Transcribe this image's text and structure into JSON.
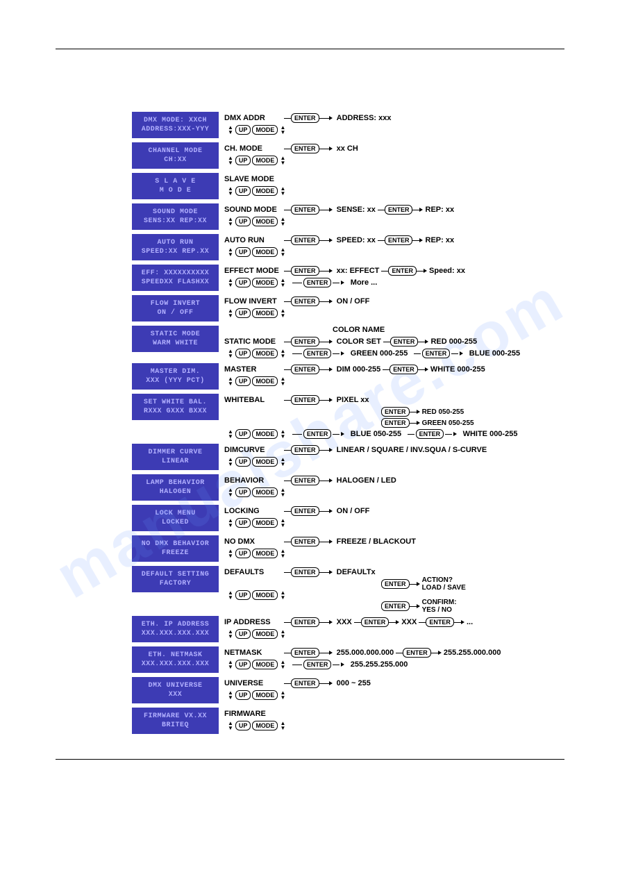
{
  "diagram_type": "menu-flowchart",
  "colors": {
    "lcd_bg": "#3d3bb4",
    "lcd_text": "#b2b0ff",
    "text": "#000000",
    "background": "#ffffff",
    "hr": "#000000",
    "btn_border": "#000000",
    "watermark": "rgba(100,150,255,0.15)"
  },
  "font_sizes": {
    "lcd": 10,
    "menu": 11,
    "btn": 9
  },
  "buttons": {
    "enter": "ENTER",
    "up": "UP",
    "mode": "MODE"
  },
  "watermark_text": "manualshare.com",
  "rows": [
    {
      "lcd": [
        "DMX MODE: XXCH",
        "ADDRESS:XXX-YYY"
      ],
      "menu": "DMX ADDR",
      "targets": [
        "ADDRESS: xxx"
      ],
      "nav": true
    },
    {
      "lcd": [
        "CHANNEL MODE",
        "CH:XX"
      ],
      "menu": "CH. MODE",
      "targets": [
        "xx CH"
      ],
      "nav": true
    },
    {
      "lcd": [
        "S L A V E",
        "M O D E"
      ],
      "menu": "SLAVE MODE",
      "targets": [],
      "nav": true
    },
    {
      "lcd": [
        "SOUND MODE",
        "SENS:XX REP:XX"
      ],
      "menu": "SOUND MODE",
      "targets": [
        "SENSE: xx",
        "REP: xx"
      ],
      "nav": true
    },
    {
      "lcd": [
        "AUTO RUN",
        "SPEED:XX REP.XX"
      ],
      "menu": "AUTO RUN",
      "targets": [
        "SPEED: xx",
        "REP: xx"
      ],
      "nav": true
    },
    {
      "lcd": [
        "EFF: XXXXXXXXXX",
        "SPEEDXX FLASHXX"
      ],
      "menu": "EFFECT MODE",
      "targets": [
        "xx: EFFECT",
        "Speed: xx"
      ],
      "nav": true,
      "sub": [
        {
          "btn": "ENTER",
          "label": "More ..."
        }
      ]
    },
    {
      "lcd": [
        "FLOW INVERT",
        "ON / OFF"
      ],
      "menu": "FLOW INVERT",
      "targets": [
        "ON / OFF"
      ],
      "nav": true
    },
    {
      "lcd": [
        "STATIC MODE",
        "WARM WHITE"
      ],
      "menu": "STATIC MODE",
      "pre_label": "COLOR NAME",
      "targets": [
        "COLOR SET",
        "RED 000-255"
      ],
      "nav": true,
      "sub": [
        {
          "btn": "ENTER",
          "label": "GREEN 000-255",
          "then_btn": "ENTER",
          "then_label": "BLUE 000-255"
        }
      ]
    },
    {
      "lcd": [
        "MASTER DIM.",
        "XXX (YYY PCT)"
      ],
      "menu": "MASTER",
      "targets": [
        "DIM 000-255",
        "WHITE 000-255"
      ],
      "nav": true
    },
    {
      "lcd": [
        "SET WHITE BAL.",
        "RXXX GXXX BXXX"
      ],
      "menu": "WHITEBAL",
      "targets": [
        "PIXEL xx"
      ],
      "extra_targets": [
        [
          "RED 050-255"
        ],
        [
          "GREEN 050-255"
        ]
      ],
      "nav": true,
      "sub": [
        {
          "btn": "ENTER",
          "label": "BLUE 050-255",
          "then_btn": "ENTER",
          "then_label": "WHITE 000-255"
        }
      ]
    },
    {
      "lcd": [
        "DIMMER CURVE",
        "LINEAR"
      ],
      "menu": "DIMCURVE",
      "targets": [
        "LINEAR / SQUARE / INV.SQUA / S-CURVE"
      ],
      "nav": true
    },
    {
      "lcd": [
        "LAMP BEHAVIOR",
        "HALOGEN"
      ],
      "menu": "BEHAVIOR",
      "targets": [
        "HALOGEN / LED"
      ],
      "nav": true
    },
    {
      "lcd": [
        "LOCK MENU",
        "LOCKED"
      ],
      "menu": "LOCKING",
      "targets": [
        "ON / OFF"
      ],
      "nav": true
    },
    {
      "lcd": [
        "NO DMX BEHAVIOR",
        "FREEZE"
      ],
      "menu": "NO DMX",
      "targets": [
        "FREEZE / BLACKOUT"
      ],
      "nav": true
    },
    {
      "lcd": [
        "DEFAULT SETTING",
        "FACTORY"
      ],
      "menu": "DEFAULTS",
      "targets": [
        "DEFAULTx"
      ],
      "extra_targets": [
        [
          "ACTION?\nLOAD / SAVE"
        ]
      ],
      "nav": true,
      "sub2": [
        {
          "btn": "ENTER",
          "label": "CONFIRM:\nYES / NO"
        }
      ]
    },
    {
      "lcd": [
        "ETH. IP ADDRESS",
        "XXX.XXX.XXX.XXX"
      ],
      "menu": "IP ADDRESS",
      "targets": [
        "XXX",
        "XXX",
        "..."
      ],
      "nav": true
    },
    {
      "lcd": [
        "ETH. NETMASK",
        "XXX.XXX.XXX.XXX"
      ],
      "menu": "NETMASK",
      "targets": [
        "255.000.000.000",
        "255.255.000.000"
      ],
      "nav": true,
      "sub": [
        {
          "btn": "ENTER",
          "label": "255.255.255.000"
        }
      ]
    },
    {
      "lcd": [
        "DMX UNIVERSE",
        "XXX"
      ],
      "menu": "UNIVERSE",
      "targets": [
        "000 ~ 255"
      ],
      "nav": true
    },
    {
      "lcd": [
        "FIRMWARE VX.XX",
        "BRITEQ"
      ],
      "menu": "FIRMWARE",
      "targets": [],
      "nav": true
    }
  ]
}
